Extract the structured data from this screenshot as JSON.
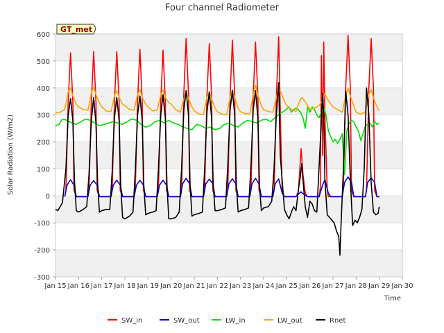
{
  "chart_data": {
    "type": "line",
    "title": "Four channel Radiometer",
    "xlabel": "Time",
    "ylabel": "Solar Radiation (W/m2)",
    "station_label": "GT_met",
    "xlim": [
      15,
      30
    ],
    "ylim": [
      -300,
      600
    ],
    "x_ticks": [
      15,
      16,
      17,
      18,
      19,
      20,
      21,
      22,
      23,
      24,
      25,
      26,
      27,
      28,
      29,
      30
    ],
    "x_tick_labels": [
      "Jan 15",
      "Jan 16",
      "Jan 17",
      "Jan 18",
      "Jan 19",
      "Jan 20",
      "Jan 21",
      "Jan 22",
      "Jan 23",
      "Jan 24",
      "Jan 25",
      "Jan 26",
      "Jan 27",
      "Jan 28",
      "Jan 29",
      "Jan 30"
    ],
    "y_ticks": [
      -300,
      -200,
      -100,
      0,
      100,
      200,
      300,
      400,
      500,
      600
    ],
    "y_tick_labels": [
      "-300",
      "-200",
      "-100",
      "0",
      "100",
      "200",
      "300",
      "400",
      "500",
      "600"
    ],
    "grid": true,
    "legend_position": "bottom-center",
    "series": [
      {
        "name": "SW_in",
        "color": "#ff0000",
        "x": [
          15.4,
          15.45,
          15.55,
          15.65,
          15.75,
          15.8,
          15.9,
          16.0,
          16.4,
          16.45,
          16.55,
          16.65,
          16.75,
          16.8,
          16.9,
          17.0,
          17.4,
          17.45,
          17.55,
          17.65,
          17.75,
          17.8,
          17.9,
          18.0,
          18.4,
          18.45,
          18.55,
          18.65,
          18.75,
          18.8,
          18.9,
          19.0,
          19.4,
          19.45,
          19.55,
          19.65,
          19.75,
          19.8,
          19.9,
          20.0,
          20.4,
          20.45,
          20.55,
          20.65,
          20.75,
          20.8,
          20.9,
          21.0,
          21.4,
          21.45,
          21.55,
          21.65,
          21.75,
          21.8,
          21.9,
          22.0,
          22.4,
          22.45,
          22.55,
          22.65,
          22.75,
          22.8,
          22.9,
          23.0,
          23.4,
          23.45,
          23.55,
          23.65,
          23.75,
          23.8,
          23.9,
          24.0,
          24.4,
          24.45,
          24.55,
          24.65,
          24.75,
          24.8,
          24.9,
          25.0,
          25.4,
          25.5,
          25.55,
          25.62,
          25.7,
          25.8,
          25.9,
          26.0,
          26.4,
          26.45,
          26.5,
          26.55,
          26.6,
          26.65,
          26.75,
          26.8,
          26.9,
          27.0,
          27.4,
          27.45,
          27.55,
          27.65,
          27.75,
          27.8,
          27.9,
          28.0,
          28.4,
          28.45,
          28.55,
          28.65,
          28.75,
          28.8,
          28.9,
          29.0
        ],
        "values": [
          -3,
          20,
          350,
          530,
          350,
          20,
          -3,
          -3,
          -3,
          20,
          350,
          535,
          350,
          20,
          -3,
          -3,
          -3,
          20,
          350,
          535,
          350,
          20,
          -3,
          -3,
          -3,
          20,
          350,
          543,
          350,
          20,
          -3,
          -3,
          -3,
          20,
          350,
          540,
          350,
          20,
          -3,
          -3,
          -3,
          20,
          380,
          583,
          380,
          20,
          -3,
          -3,
          -3,
          20,
          370,
          565,
          370,
          20,
          -3,
          -3,
          -3,
          20,
          370,
          577,
          370,
          20,
          -3,
          -3,
          -3,
          20,
          370,
          570,
          370,
          20,
          -3,
          -3,
          -3,
          20,
          360,
          590,
          200,
          20,
          -3,
          -3,
          -3,
          15,
          80,
          175,
          80,
          10,
          -3,
          -3,
          -3,
          30,
          520,
          150,
          570,
          300,
          20,
          -3,
          -3,
          -3,
          -3,
          30,
          400,
          595,
          400,
          20,
          -3,
          -3,
          -3,
          20,
          400,
          583,
          400,
          20,
          -3,
          -3
        ]
      },
      {
        "name": "SW_out",
        "color": "#0000cc",
        "x": [
          15.4,
          15.5,
          15.65,
          15.8,
          15.9,
          16.0,
          16.4,
          16.5,
          16.65,
          16.8,
          16.9,
          17.0,
          17.4,
          17.5,
          17.65,
          17.8,
          17.9,
          18.0,
          18.4,
          18.5,
          18.65,
          18.8,
          18.9,
          19.0,
          19.4,
          19.5,
          19.65,
          19.8,
          19.9,
          20.0,
          20.4,
          20.5,
          20.65,
          20.8,
          20.9,
          21.0,
          21.4,
          21.5,
          21.65,
          21.8,
          21.9,
          22.0,
          22.4,
          22.5,
          22.65,
          22.8,
          22.9,
          23.0,
          23.4,
          23.5,
          23.65,
          23.8,
          23.9,
          24.0,
          24.4,
          24.5,
          24.65,
          24.8,
          24.9,
          25.0,
          25.4,
          25.55,
          25.62,
          25.7,
          25.9,
          26.0,
          26.4,
          26.55,
          26.65,
          26.8,
          26.9,
          27.0,
          27.4,
          27.5,
          27.65,
          27.8,
          27.9,
          28.0,
          28.4,
          28.5,
          28.65,
          28.8,
          28.9,
          29.0
        ],
        "values": [
          -3,
          40,
          60,
          40,
          -3,
          -3,
          -3,
          40,
          57,
          40,
          -3,
          -3,
          -3,
          40,
          58,
          40,
          -3,
          -3,
          -3,
          40,
          58,
          40,
          -3,
          -3,
          -3,
          40,
          58,
          40,
          -3,
          -3,
          -3,
          45,
          65,
          45,
          -3,
          -3,
          -3,
          45,
          62,
          45,
          -3,
          -3,
          -3,
          45,
          63,
          45,
          -3,
          -3,
          -3,
          45,
          65,
          45,
          -3,
          -3,
          -3,
          45,
          63,
          10,
          -3,
          -3,
          -3,
          10,
          15,
          8,
          -3,
          -3,
          -3,
          40,
          60,
          10,
          -3,
          -3,
          -3,
          50,
          70,
          50,
          -3,
          -3,
          -3,
          50,
          67,
          50,
          -3,
          -3
        ]
      },
      {
        "name": "LW_in",
        "color": "#00dd00",
        "x": [
          15.0,
          15.15,
          15.3,
          15.5,
          15.7,
          15.9,
          16.1,
          16.3,
          16.5,
          16.7,
          16.9,
          17.1,
          17.3,
          17.5,
          17.7,
          17.9,
          18.1,
          18.3,
          18.5,
          18.7,
          18.9,
          19.1,
          19.3,
          19.5,
          19.7,
          19.9,
          20.1,
          20.3,
          20.5,
          20.7,
          20.9,
          21.1,
          21.3,
          21.5,
          21.7,
          21.9,
          22.1,
          22.3,
          22.5,
          22.7,
          22.9,
          23.1,
          23.3,
          23.5,
          23.7,
          23.9,
          24.1,
          24.3,
          24.5,
          24.7,
          24.9,
          25.1,
          25.2,
          25.3,
          25.4,
          25.5,
          25.6,
          25.7,
          25.8,
          25.9,
          26.0,
          26.1,
          26.2,
          26.3,
          26.4,
          26.5,
          26.6,
          26.7,
          26.8,
          26.9,
          27.0,
          27.1,
          27.2,
          27.3,
          27.4,
          27.5,
          27.6,
          27.7,
          27.8,
          27.9,
          28.0,
          28.1,
          28.2,
          28.3,
          28.4,
          28.5,
          28.6,
          28.7,
          28.8,
          28.9,
          29.0
        ],
        "values": [
          260,
          265,
          285,
          280,
          270,
          265,
          275,
          285,
          280,
          270,
          260,
          265,
          270,
          275,
          270,
          265,
          275,
          285,
          280,
          265,
          255,
          260,
          275,
          280,
          270,
          280,
          270,
          265,
          255,
          250,
          245,
          265,
          260,
          250,
          255,
          245,
          250,
          265,
          270,
          260,
          255,
          270,
          280,
          275,
          270,
          280,
          285,
          275,
          290,
          305,
          315,
          330,
          310,
          320,
          325,
          320,
          310,
          290,
          250,
          330,
          310,
          330,
          320,
          300,
          290,
          310,
          330,
          300,
          240,
          220,
          200,
          210,
          195,
          210,
          230,
          80,
          240,
          270,
          280,
          275,
          255,
          240,
          205,
          230,
          260,
          265,
          270,
          255,
          275,
          265,
          270
        ]
      },
      {
        "name": "LW_out",
        "color": "#ffa500",
        "x": [
          15.0,
          15.2,
          15.4,
          15.55,
          15.65,
          15.75,
          15.9,
          16.0,
          16.2,
          16.4,
          16.55,
          16.65,
          16.75,
          16.9,
          17.0,
          17.2,
          17.4,
          17.55,
          17.65,
          17.75,
          17.9,
          18.0,
          18.2,
          18.4,
          18.55,
          18.65,
          18.75,
          18.9,
          19.0,
          19.2,
          19.4,
          19.55,
          19.65,
          19.75,
          19.9,
          20.0,
          20.2,
          20.4,
          20.55,
          20.65,
          20.75,
          20.9,
          21.0,
          21.2,
          21.4,
          21.55,
          21.65,
          21.75,
          21.9,
          22.0,
          22.2,
          22.4,
          22.55,
          22.65,
          22.75,
          22.9,
          23.0,
          23.2,
          23.4,
          23.55,
          23.65,
          23.75,
          23.9,
          24.0,
          24.2,
          24.4,
          24.55,
          24.65,
          24.75,
          24.9,
          25.0,
          25.2,
          25.4,
          25.55,
          25.65,
          25.75,
          25.9,
          26.0,
          26.2,
          26.4,
          26.55,
          26.65,
          26.75,
          26.9,
          27.0,
          27.2,
          27.4,
          27.55,
          27.65,
          27.75,
          27.9,
          28.0,
          28.2,
          28.4,
          28.55,
          28.65,
          28.75,
          28.9,
          29.0
        ],
        "values": [
          307,
          310,
          320,
          385,
          400,
          370,
          340,
          330,
          320,
          318,
          380,
          403,
          375,
          345,
          330,
          315,
          312,
          370,
          390,
          365,
          340,
          335,
          320,
          318,
          375,
          395,
          365,
          340,
          330,
          315,
          318,
          375,
          393,
          365,
          345,
          340,
          320,
          310,
          360,
          383,
          360,
          330,
          315,
          303,
          302,
          365,
          385,
          360,
          325,
          312,
          303,
          300,
          365,
          393,
          365,
          325,
          312,
          305,
          303,
          375,
          410,
          375,
          335,
          320,
          313,
          310,
          365,
          393,
          385,
          350,
          335,
          320,
          313,
          350,
          365,
          355,
          335,
          320,
          325,
          335,
          355,
          380,
          360,
          340,
          330,
          320,
          310,
          370,
          400,
          370,
          335,
          310,
          303,
          310,
          375,
          393,
          365,
          330,
          315
        ]
      },
      {
        "name": "Rnet",
        "color": "#000000",
        "x": [
          15.0,
          15.1,
          15.2,
          15.3,
          15.45,
          15.55,
          15.65,
          15.75,
          15.82,
          15.9,
          16.0,
          16.2,
          16.35,
          16.45,
          16.55,
          16.65,
          16.75,
          16.82,
          16.9,
          17.0,
          17.2,
          17.35,
          17.45,
          17.55,
          17.65,
          17.75,
          17.82,
          17.9,
          18.0,
          18.2,
          18.35,
          18.45,
          18.55,
          18.65,
          18.75,
          18.82,
          18.9,
          19.0,
          19.2,
          19.35,
          19.45,
          19.55,
          19.65,
          19.75,
          19.82,
          19.9,
          20.0,
          20.2,
          20.35,
          20.45,
          20.55,
          20.65,
          20.75,
          20.82,
          20.9,
          21.0,
          21.2,
          21.35,
          21.45,
          21.55,
          21.65,
          21.75,
          21.82,
          21.9,
          22.0,
          22.2,
          22.35,
          22.45,
          22.55,
          22.65,
          22.75,
          22.82,
          22.9,
          23.0,
          23.2,
          23.35,
          23.45,
          23.55,
          23.65,
          23.75,
          23.82,
          23.9,
          24.0,
          24.2,
          24.35,
          24.45,
          24.55,
          24.65,
          24.72,
          24.8,
          24.9,
          25.0,
          25.1,
          25.2,
          25.3,
          25.4,
          25.5,
          25.6,
          25.65,
          25.7,
          25.8,
          25.9,
          26.0,
          26.1,
          26.2,
          26.3,
          26.45,
          26.55,
          26.6,
          26.65,
          26.75,
          26.85,
          26.95,
          27.05,
          27.15,
          27.25,
          27.3,
          27.35,
          27.45,
          27.55,
          27.65,
          27.75,
          27.85,
          27.95,
          28.05,
          28.15,
          28.25,
          28.35,
          28.45,
          28.55,
          28.65,
          28.75,
          28.85,
          28.95,
          29.0
        ],
        "values": [
          -50,
          -55,
          -40,
          -25,
          100,
          300,
          360,
          280,
          60,
          -55,
          -60,
          -50,
          -40,
          80,
          280,
          365,
          270,
          50,
          -60,
          -55,
          -50,
          -50,
          90,
          290,
          365,
          280,
          40,
          -80,
          -85,
          -75,
          -60,
          90,
          300,
          370,
          280,
          40,
          -70,
          -65,
          -60,
          -55,
          95,
          300,
          375,
          290,
          40,
          -85,
          -85,
          -80,
          -60,
          100,
          320,
          390,
          300,
          40,
          -75,
          -70,
          -65,
          -60,
          100,
          310,
          385,
          290,
          40,
          -55,
          -55,
          -50,
          -45,
          110,
          320,
          390,
          300,
          40,
          -60,
          -55,
          -50,
          -45,
          110,
          320,
          390,
          290,
          40,
          -55,
          -45,
          -40,
          -20,
          100,
          300,
          420,
          150,
          60,
          -50,
          -70,
          -85,
          -60,
          -40,
          -55,
          20,
          80,
          120,
          60,
          -40,
          -80,
          -20,
          -30,
          -55,
          -60,
          200,
          380,
          300,
          60,
          -70,
          -80,
          -90,
          -100,
          -130,
          -150,
          -220,
          -100,
          100,
          390,
          300,
          60,
          -110,
          -90,
          -100,
          -80,
          -50,
          100,
          400,
          300,
          50,
          -60,
          -70,
          -65,
          -40
        ]
      }
    ]
  }
}
